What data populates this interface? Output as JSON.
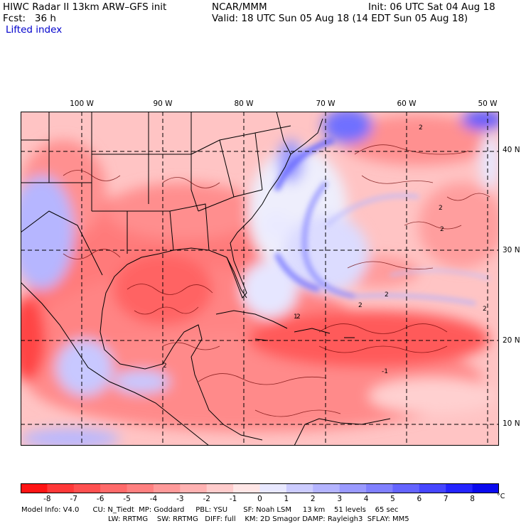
{
  "header": {
    "title": "HIWC Radar II 13km ARW–GFS init",
    "org": "NCAR/MMM",
    "init": "Init: 06 UTC Sat 04 Aug 18",
    "fcst": "Fcst:   36 h",
    "valid": "Valid: 18 UTC Sun 05 Aug 18 (14 EDT Sun 05 Aug 18)",
    "field": "Lifted index"
  },
  "map": {
    "lon_labels": [
      "100 W",
      "90 W",
      "80 W",
      "70 W",
      "60 W",
      "50 W"
    ],
    "lat_labels": [
      "40 N",
      "30 N",
      "20 N",
      "10 N"
    ],
    "contour_labels": [
      "2",
      "2",
      "2",
      "2",
      "2",
      "2",
      "2",
      "-1",
      "1",
      "2"
    ]
  },
  "colorbar": {
    "labels": [
      "-8",
      "-7",
      "-6",
      "-5",
      "-4",
      "-3",
      "-2",
      "-1",
      "0",
      "1",
      "2",
      "3",
      "4",
      "5",
      "6",
      "7",
      "8"
    ],
    "unit": "°C",
    "colors": [
      "#ff1414",
      "#ff3838",
      "#ff5050",
      "#ff6a6a",
      "#ff8080",
      "#ff9a9a",
      "#ffb2b2",
      "#ffcccc",
      "#ffe6e6",
      "#e8e8ff",
      "#ccccff",
      "#b4b4ff",
      "#9a9aff",
      "#8080ff",
      "#6464ff",
      "#4646ff",
      "#2424ff",
      "#0a0aee"
    ]
  },
  "footer": {
    "line1": "Model Info: V4.0      CU: N_Tiedt  MP: Goddard     PBL: YSU       SF: Noah LSM     13 km    51 levels    65 sec",
    "line2": "LW: RRTMG    SW: RRTMG   DIFF: full    KM: 2D Smagor DAMP: Rayleigh3  SFLAY: MM5"
  }
}
